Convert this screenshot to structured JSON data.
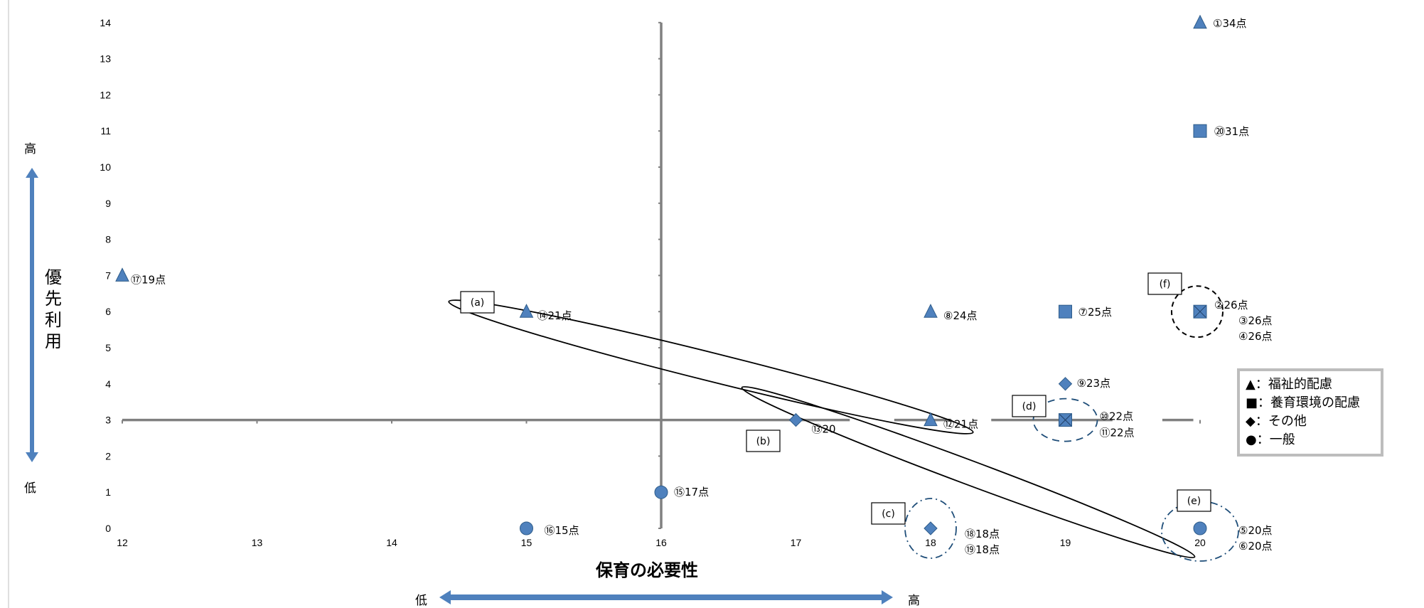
{
  "chart_data": {
    "type": "scatter",
    "xlim": [
      12,
      20
    ],
    "ylim": [
      0,
      14
    ],
    "x_ticks": [
      "12",
      "13",
      "14",
      "15",
      "16",
      "17",
      "18",
      "19",
      "20"
    ],
    "y_ticks": [
      "0",
      "1",
      "2",
      "3",
      "4",
      "5",
      "6",
      "7",
      "8",
      "9",
      "10",
      "11",
      "12",
      "13",
      "14"
    ],
    "xlabel": "保育の必要性",
    "x_low": "低",
    "x_high": "高",
    "ylabel": "優先利用",
    "y_low": "低",
    "y_high": "高",
    "quadrant_axes": {
      "x": 16,
      "y": 3
    },
    "points": [
      {
        "x": 20,
        "y": 14,
        "shape": "triangle",
        "label": "①34点"
      },
      {
        "x": 20,
        "y": 11,
        "shape": "square",
        "label": "⑳31点"
      },
      {
        "x": 12,
        "y": 7,
        "shape": "triangle",
        "label": "⑰19点"
      },
      {
        "x": 15,
        "y": 6,
        "shape": "triangle",
        "label": "⑭21点"
      },
      {
        "x": 18,
        "y": 6,
        "shape": "triangle",
        "label": "⑧24点"
      },
      {
        "x": 19,
        "y": 6,
        "shape": "square",
        "label": "⑦25点"
      },
      {
        "x": 20,
        "y": 6,
        "shape": "square",
        "label": "②26点"
      },
      {
        "x": 19,
        "y": 4,
        "shape": "diamond",
        "label": "⑨23点"
      },
      {
        "x": 17,
        "y": 3,
        "shape": "diamond",
        "label": "⑬20"
      },
      {
        "x": 18,
        "y": 3,
        "shape": "triangle",
        "label": "⑫21点"
      },
      {
        "x": 19,
        "y": 3,
        "shape": "square",
        "label": "⑩22点"
      },
      {
        "x": 16,
        "y": 1,
        "shape": "circle",
        "label": "⑮17点"
      },
      {
        "x": 15,
        "y": 0,
        "shape": "circle",
        "label": "⑯15点"
      },
      {
        "x": 18,
        "y": 0,
        "shape": "diamond",
        "label": "⑱18点"
      },
      {
        "x": 20,
        "y": 0,
        "shape": "circle",
        "label": "⑤20点"
      }
    ],
    "extra_labels": [
      "③26点",
      "④26点",
      "⑪22点",
      "⑲18点",
      "⑥20点"
    ],
    "group_boxes": [
      "(a)",
      "(b)",
      "(c)",
      "(d)",
      "(e)",
      "(f)"
    ],
    "legend": [
      {
        "marker": "▲",
        "text": "：福祉的配慮"
      },
      {
        "marker": "■",
        "text": "：養育環境の配慮"
      },
      {
        "marker": "◆",
        "text": "：その他"
      },
      {
        "marker": "●",
        "text": "：一般"
      }
    ],
    "colors": {
      "marker": "#4f81bd",
      "marker_stroke": "#2e5c8a",
      "axis": "#808080",
      "arrow": "#4f81bd"
    }
  }
}
